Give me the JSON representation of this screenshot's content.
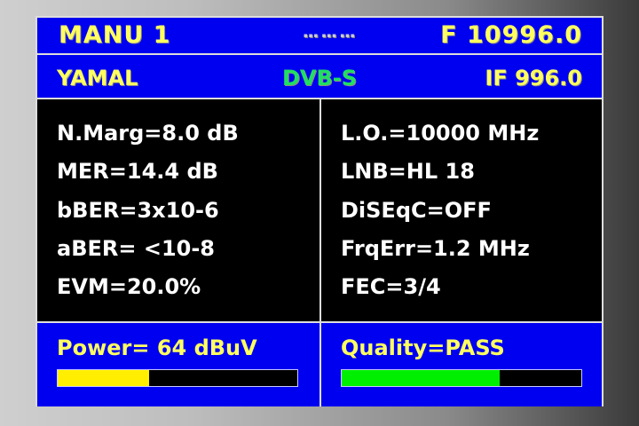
{
  "header": {
    "mode": "MANU 1",
    "frequency": "F 10996.0",
    "satellite": "YAMAL",
    "standard": "DVB-S",
    "if_freq": "IF 996.0"
  },
  "measurements_left": [
    "N.Marg=8.0 dB",
    "MER=14.4 dB",
    "bBER=3x10-6",
    "aBER= <10-8",
    "EVM=20.0%"
  ],
  "measurements_right": [
    "L.O.=10000 MHz",
    "LNB=HL 18",
    "DiSEqC=OFF",
    "FrqErr=1.2 MHz",
    "FEC=3/4"
  ],
  "power": {
    "label": "Power= 64 dBuV",
    "level_fraction": 0.38,
    "color": "#ffee00"
  },
  "quality": {
    "label": "Quality=PASS",
    "level_fraction": 0.66,
    "color": "#00ee00"
  },
  "colors": {
    "panel": "#0000f0",
    "text": "#ffff60",
    "standard": "#20e060"
  }
}
